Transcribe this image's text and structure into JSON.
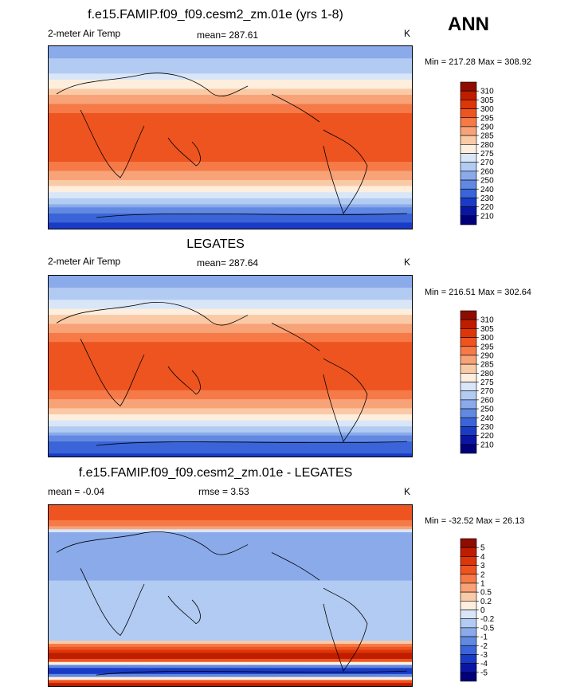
{
  "season": "ANN",
  "chart_data": [
    {
      "type": "heatmap",
      "title": "f.e15.FAMIP.f09_f09.cesm2_zm.01e (yrs 1-8)",
      "left_label": "2-meter Air Temp",
      "center_label": "mean= 287.61",
      "right_label": "K",
      "minmax": "Min = 217.28 Max = 308.92",
      "legend_levels": [
        "310",
        "305",
        "300",
        "295",
        "290",
        "285",
        "280",
        "275",
        "270",
        "260",
        "250",
        "240",
        "230",
        "220",
        "210"
      ],
      "legend_colors": [
        "#8e0d00",
        "#bf1d00",
        "#dd3608",
        "#ee5420",
        "#f57a48",
        "#f8a278",
        "#facaa6",
        "#fdeedd",
        "#d9e6f8",
        "#b2cbf2",
        "#8aaaea",
        "#6289e2",
        "#3a64d8",
        "#1a3bc6",
        "#0a16a3",
        "#01007a"
      ],
      "zonal_profile_lat": [
        90,
        75,
        60,
        45,
        30,
        15,
        0,
        -15,
        -30,
        -45,
        -60,
        -75,
        -90
      ],
      "zonal_profile_value": [
        250,
        262,
        272,
        283,
        292,
        298,
        300,
        298,
        292,
        283,
        270,
        240,
        225
      ]
    },
    {
      "type": "heatmap",
      "title": "LEGATES",
      "left_label": "2-meter Air Temp",
      "center_label": "mean= 287.64",
      "right_label": "K",
      "minmax": "Min = 216.51 Max = 302.64",
      "legend_levels": [
        "310",
        "305",
        "300",
        "295",
        "290",
        "285",
        "280",
        "275",
        "270",
        "260",
        "250",
        "240",
        "230",
        "220",
        "210"
      ],
      "legend_colors": [
        "#8e0d00",
        "#bf1d00",
        "#dd3608",
        "#ee5420",
        "#f57a48",
        "#f8a278",
        "#facaa6",
        "#fdeedd",
        "#d9e6f8",
        "#b2cbf2",
        "#8aaaea",
        "#6289e2",
        "#3a64d8",
        "#1a3bc6",
        "#0a16a3",
        "#01007a"
      ],
      "zonal_profile_lat": [
        90,
        75,
        60,
        45,
        30,
        15,
        0,
        -15,
        -30,
        -45,
        -60,
        -75,
        -90
      ],
      "zonal_profile_value": [
        252,
        263,
        273,
        283,
        292,
        298,
        300,
        298,
        292,
        283,
        270,
        240,
        226
      ]
    },
    {
      "type": "heatmap",
      "title": "f.e15.FAMIP.f09_f09.cesm2_zm.01e - LEGATES",
      "left_label": "mean =  -0.04",
      "center_label": "rmse =    3.53",
      "right_label": "K",
      "minmax": "Min = -32.52 Max =  26.13",
      "legend_levels": [
        "5",
        "4",
        "3",
        "2",
        "1",
        "0.5",
        "0.2",
        "0",
        "-0.2",
        "-0.5",
        "-1",
        "-2",
        "-3",
        "-4",
        "-5"
      ],
      "legend_colors": [
        "#8e0d00",
        "#bf1d00",
        "#dd3608",
        "#ee5420",
        "#f57a48",
        "#f8a278",
        "#facaa6",
        "#fdeedd",
        "#d9e6f8",
        "#b2cbf2",
        "#8aaaea",
        "#6289e2",
        "#3a64d8",
        "#1a3bc6",
        "#0a16a3",
        "#01007a"
      ],
      "zonal_profile_lat": [
        90,
        75,
        60,
        45,
        30,
        15,
        0,
        -15,
        -30,
        -45,
        -60,
        -75,
        -90
      ],
      "zonal_profile_value": [
        3,
        2,
        -1,
        -1,
        -1,
        -0.5,
        -0.3,
        -0.5,
        -0.5,
        -0.2,
        5,
        -5,
        5
      ]
    }
  ]
}
